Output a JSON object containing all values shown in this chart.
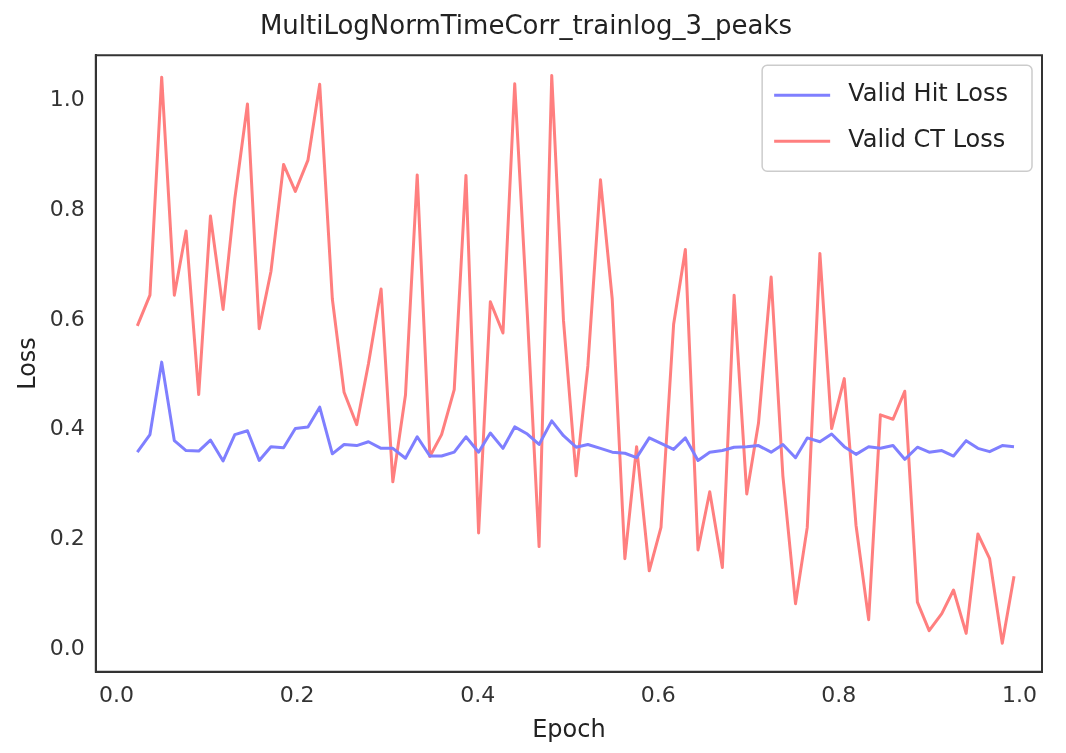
{
  "chart_data": {
    "type": "line",
    "title": "MultiLogNormTimeCorr_trainlog_3_peaks",
    "xlabel": "Epoch",
    "ylabel": "Loss",
    "x": [
      0.023,
      0.037,
      0.05,
      0.064,
      0.077,
      0.091,
      0.104,
      0.118,
      0.131,
      0.145,
      0.158,
      0.171,
      0.185,
      0.198,
      0.212,
      0.225,
      0.239,
      0.252,
      0.266,
      0.279,
      0.293,
      0.306,
      0.32,
      0.333,
      0.347,
      0.36,
      0.374,
      0.387,
      0.401,
      0.414,
      0.428,
      0.441,
      0.455,
      0.468,
      0.482,
      0.495,
      0.509,
      0.522,
      0.536,
      0.549,
      0.563,
      0.576,
      0.59,
      0.603,
      0.617,
      0.63,
      0.644,
      0.657,
      0.671,
      0.684,
      0.698,
      0.711,
      0.725,
      0.738,
      0.752,
      0.765,
      0.779,
      0.792,
      0.806,
      0.819,
      0.833,
      0.846,
      0.86,
      0.873,
      0.887,
      0.9,
      0.914,
      0.927,
      0.941,
      0.954,
      0.967,
      0.981,
      0.994
    ],
    "series": [
      {
        "name": "Valid Hit Loss",
        "color": "#7f7fff",
        "values": [
          0.359,
          0.391,
          0.523,
          0.38,
          0.362,
          0.361,
          0.381,
          0.343,
          0.391,
          0.398,
          0.344,
          0.369,
          0.367,
          0.402,
          0.405,
          0.441,
          0.356,
          0.373,
          0.371,
          0.378,
          0.366,
          0.366,
          0.348,
          0.387,
          0.352,
          0.352,
          0.359,
          0.387,
          0.359,
          0.394,
          0.366,
          0.405,
          0.392,
          0.373,
          0.416,
          0.389,
          0.368,
          0.373,
          0.366,
          0.359,
          0.357,
          0.349,
          0.385,
          0.375,
          0.364,
          0.385,
          0.344,
          0.359,
          0.362,
          0.368,
          0.369,
          0.371,
          0.359,
          0.373,
          0.349,
          0.385,
          0.378,
          0.392,
          0.369,
          0.355,
          0.369,
          0.366,
          0.371,
          0.346,
          0.368,
          0.359,
          0.362,
          0.352,
          0.38,
          0.366,
          0.36,
          0.371,
          0.369
        ]
      },
      {
        "name": "Valid CT Loss",
        "color": "#ff7f7f",
        "values": [
          0.589,
          0.645,
          1.042,
          0.645,
          0.762,
          0.464,
          0.789,
          0.619,
          0.821,
          0.993,
          0.584,
          0.688,
          0.883,
          0.834,
          0.891,
          1.029,
          0.638,
          0.468,
          0.409,
          0.52,
          0.656,
          0.305,
          0.463,
          0.864,
          0.351,
          0.391,
          0.473,
          0.863,
          0.212,
          0.633,
          0.576,
          1.03,
          0.609,
          0.187,
          1.045,
          0.599,
          0.316,
          0.516,
          0.855,
          0.638,
          0.165,
          0.369,
          0.143,
          0.222,
          0.592,
          0.728,
          0.181,
          0.287,
          0.149,
          0.645,
          0.283,
          0.412,
          0.678,
          0.316,
          0.083,
          0.222,
          0.721,
          0.402,
          0.493,
          0.226,
          0.054,
          0.427,
          0.419,
          0.47,
          0.086,
          0.034,
          0.065,
          0.108,
          0.029,
          0.21,
          0.165,
          0.011,
          0.133
        ]
      }
    ],
    "xlim": [
      -0.023,
      1.025
    ],
    "ylim": [
      -0.041,
      1.082
    ],
    "xticks": [
      {
        "value": 0,
        "label": "0.0"
      },
      {
        "value": 0.2,
        "label": "0.2"
      },
      {
        "value": 0.4,
        "label": "0.4"
      },
      {
        "value": 0.6,
        "label": "0.6"
      },
      {
        "value": 0.8,
        "label": "0.8"
      },
      {
        "value": 1,
        "label": "1.0"
      }
    ],
    "yticks": [
      {
        "value": 0,
        "label": "0.0"
      },
      {
        "value": 0.2,
        "label": "0.2"
      },
      {
        "value": 0.4,
        "label": "0.4"
      },
      {
        "value": 0.6,
        "label": "0.6"
      },
      {
        "value": 0.8,
        "label": "0.8"
      },
      {
        "value": 1,
        "label": "1.0"
      }
    ],
    "legend": "top right",
    "marker": "none",
    "line_style": "solid"
  }
}
